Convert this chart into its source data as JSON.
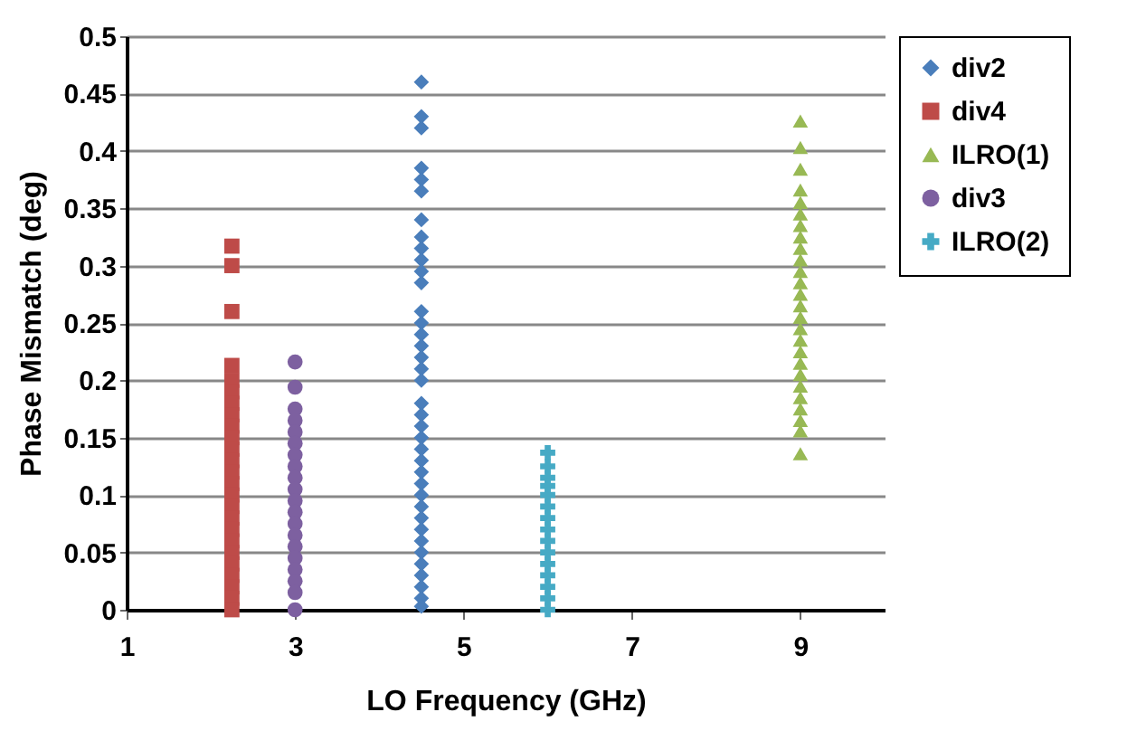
{
  "chart_data": {
    "type": "scatter",
    "xlabel": "LO Frequency (GHz)",
    "ylabel": "Phase Mismatch (deg)",
    "xlim": [
      1,
      10
    ],
    "xticks": [
      1,
      3,
      5,
      7,
      9
    ],
    "ylim": [
      0,
      0.5
    ],
    "yticks": [
      0,
      0.05,
      0.1,
      0.15,
      0.2,
      0.25,
      0.3,
      0.35,
      0.4,
      0.45,
      0.5
    ],
    "grid": "y",
    "legend": "right",
    "series": [
      {
        "name": "div2",
        "color": "#4a7ebb",
        "marker": "diamond",
        "x": [
          4.5,
          4.5,
          4.5,
          4.5,
          4.5,
          4.5,
          4.5,
          4.5,
          4.5,
          4.5,
          4.5,
          4.5,
          4.5,
          4.5,
          4.5,
          4.5,
          4.5,
          4.5,
          4.5,
          4.5,
          4.5,
          4.5,
          4.5,
          4.5,
          4.5,
          4.5,
          4.5,
          4.5,
          4.5,
          4.5,
          4.5,
          4.5,
          4.5,
          4.5,
          4.5,
          4.5,
          4.5,
          4.5
        ],
        "values": [
          0.46,
          0.43,
          0.42,
          0.385,
          0.375,
          0.365,
          0.34,
          0.325,
          0.315,
          0.305,
          0.295,
          0.285,
          0.26,
          0.25,
          0.24,
          0.23,
          0.22,
          0.21,
          0.2,
          0.18,
          0.17,
          0.16,
          0.15,
          0.14,
          0.13,
          0.12,
          0.11,
          0.1,
          0.09,
          0.08,
          0.07,
          0.06,
          0.05,
          0.04,
          0.03,
          0.02,
          0.01,
          0.003
        ]
      },
      {
        "name": "div4",
        "color": "#be4b48",
        "marker": "square",
        "x": [
          2.25,
          2.25,
          2.25,
          2.25,
          2.25,
          2.25,
          2.25,
          2.25,
          2.25,
          2.25,
          2.25,
          2.25,
          2.25,
          2.25,
          2.25,
          2.25,
          2.25,
          2.25,
          2.25,
          2.25,
          2.25,
          2.25,
          2.25,
          2.25,
          2.25
        ],
        "values": [
          0.317,
          0.3,
          0.26,
          0.213,
          0.2,
          0.19,
          0.18,
          0.17,
          0.16,
          0.15,
          0.14,
          0.13,
          0.12,
          0.11,
          0.1,
          0.09,
          0.08,
          0.07,
          0.06,
          0.05,
          0.04,
          0.03,
          0.02,
          0.01,
          0
        ]
      },
      {
        "name": "ILRO(1)",
        "color": "#98b954",
        "marker": "triangle",
        "x": [
          9,
          9,
          9,
          9,
          9,
          9,
          9,
          9,
          9,
          9,
          9,
          9,
          9,
          9,
          9,
          9,
          9,
          9,
          9,
          9,
          9,
          9,
          9,
          9,
          9,
          9
        ],
        "values": [
          0.426,
          0.403,
          0.384,
          0.366,
          0.355,
          0.345,
          0.335,
          0.325,
          0.315,
          0.305,
          0.295,
          0.285,
          0.275,
          0.265,
          0.255,
          0.245,
          0.235,
          0.225,
          0.215,
          0.205,
          0.195,
          0.185,
          0.175,
          0.165,
          0.156,
          0.136
        ]
      },
      {
        "name": "div3",
        "color": "#7d60a0",
        "marker": "circle",
        "x": [
          3,
          3,
          3,
          3,
          3,
          3,
          3,
          3,
          3,
          3,
          3,
          3,
          3,
          3,
          3,
          3,
          3,
          3,
          3,
          3
        ],
        "values": [
          0.216,
          0.194,
          0.175,
          0.165,
          0.155,
          0.145,
          0.135,
          0.125,
          0.115,
          0.105,
          0.095,
          0.085,
          0.075,
          0.065,
          0.055,
          0.045,
          0.035,
          0.025,
          0.015,
          0
        ]
      },
      {
        "name": "ILRO(2)",
        "color": "#46aac5",
        "marker": "cross",
        "x": [
          6,
          6,
          6,
          6,
          6,
          6,
          6,
          6,
          6,
          6,
          6,
          6,
          6,
          6,
          6
        ],
        "values": [
          0.137,
          0.125,
          0.115,
          0.108,
          0.1,
          0.09,
          0.08,
          0.07,
          0.06,
          0.05,
          0.04,
          0.03,
          0.02,
          0.01,
          0
        ]
      }
    ]
  }
}
